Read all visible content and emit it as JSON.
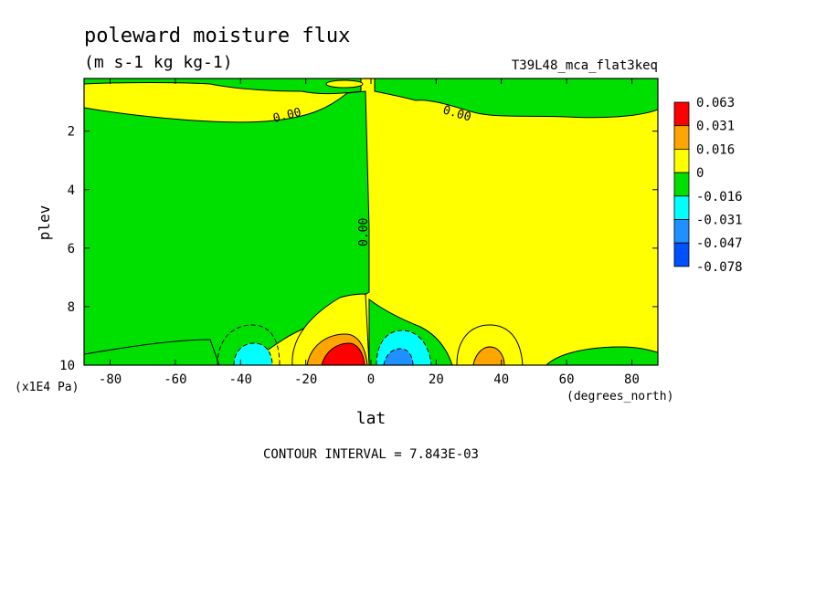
{
  "chart_data": {
    "type": "heatmap",
    "title": "poleward moisture flux",
    "subtitle": "(m s-1 kg kg-1)",
    "run_label": "T39L48_mca_flat3keq",
    "xlabel": "lat",
    "xunits": "(degrees_north)",
    "ylabel": "plev",
    "yunits": "(x1E4 Pa)",
    "xlim": [
      -88,
      88
    ],
    "ylim": [
      10,
      0.2
    ],
    "x_ticks": [
      -80,
      -60,
      -40,
      -20,
      0,
      20,
      40,
      60,
      80
    ],
    "x_tick_labels": [
      "-80",
      "-60",
      "-40",
      "-20",
      "0",
      "20",
      "40",
      "60",
      "80"
    ],
    "y_ticks": [
      2,
      4,
      6,
      8,
      10
    ],
    "y_tick_labels": [
      "2",
      "4",
      "6",
      "8",
      "10"
    ],
    "contour_labels": [
      "0.00",
      "0.00",
      "0.00"
    ],
    "footer": "CONTOUR INTERVAL = 7.843E-03",
    "colorbar": {
      "levels": [
        "0.063",
        "0.031",
        "0.016",
        "0",
        "-0.016",
        "-0.031",
        "-0.047",
        "-0.078"
      ],
      "colors": [
        "#ff0000",
        "#ffa500",
        "#ffff00",
        "#00e000",
        "#00ffff",
        "#1e90ff",
        "#0050ff"
      ]
    },
    "colors": {
      "positive_strong": "#ff0000",
      "positive_mid": "#ffa500",
      "positive_weak": "#ffff00",
      "negative_weak": "#00e000",
      "negative_mid": "#00ffff",
      "negative_strong": "#1e90ff"
    }
  }
}
